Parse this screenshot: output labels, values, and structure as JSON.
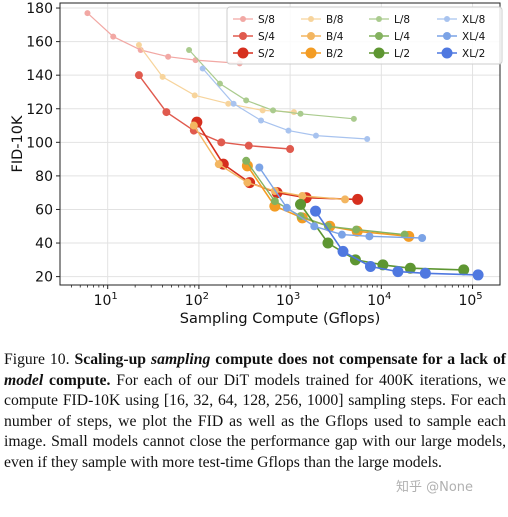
{
  "chart_data": {
    "type": "line",
    "xscale": "log",
    "xlim": [
      3,
      200000
    ],
    "ylim": [
      15,
      183
    ],
    "xlabel": "Sampling Compute (Gflops)",
    "ylabel": "FID-10K",
    "yticks": [
      "20",
      "40",
      "60",
      "80",
      "100",
      "120",
      "140",
      "160",
      "180"
    ],
    "xticks": [
      {
        "value": 10,
        "base": "10",
        "exp": "1"
      },
      {
        "value": 100,
        "base": "10",
        "exp": "2"
      },
      {
        "value": 1000,
        "base": "10",
        "exp": "3"
      },
      {
        "value": 10000,
        "base": "10",
        "exp": "4"
      },
      {
        "value": 100000,
        "base": "10",
        "exp": "5"
      }
    ],
    "grid": true,
    "legend_position": "top-right",
    "series": [
      {
        "name": "S/8",
        "color": "#f2a8a4",
        "size": "small",
        "x": [
          6,
          11.5,
          23,
          46,
          92,
          280
        ],
        "y": [
          177,
          163,
          155,
          151,
          149,
          147
        ]
      },
      {
        "name": "S/4",
        "color": "#e05a4e",
        "size": "medium",
        "x": [
          22,
          44,
          88,
          176,
          352,
          1000
        ],
        "y": [
          140,
          118,
          107,
          100,
          98,
          96
        ]
      },
      {
        "name": "S/2",
        "color": "#d62f1e",
        "size": "large",
        "x": [
          95,
          185,
          360,
          720,
          1500,
          5500
        ],
        "y": [
          112,
          87,
          76,
          70,
          67,
          66
        ]
      },
      {
        "name": "B/8",
        "color": "#f7d49c",
        "size": "small",
        "x": [
          22,
          40,
          90,
          210,
          500,
          1100
        ],
        "y": [
          158,
          139,
          128,
          123,
          119,
          118
        ]
      },
      {
        "name": "B/4",
        "color": "#f3b661",
        "size": "medium",
        "x": [
          88,
          165,
          340,
          680,
          1360,
          4000
        ],
        "y": [
          110,
          87,
          76,
          71,
          68,
          66
        ]
      },
      {
        "name": "B/2",
        "color": "#f39c24",
        "size": "large",
        "x": [
          340,
          680,
          1360,
          2720,
          5440,
          20000
        ],
        "y": [
          86,
          62,
          55,
          50,
          47,
          44
        ]
      },
      {
        "name": "L/8",
        "color": "#aacb8e",
        "size": "small",
        "x": [
          78,
          170,
          330,
          650,
          1300,
          5000
        ],
        "y": [
          155,
          135,
          125,
          119,
          117,
          114
        ]
      },
      {
        "name": "L/4",
        "color": "#84b25f",
        "size": "medium",
        "x": [
          330,
          680,
          1300,
          2600,
          5300,
          18000
        ],
        "y": [
          89,
          65,
          56,
          50,
          48,
          45
        ]
      },
      {
        "name": "L/2",
        "color": "#5e9632",
        "size": "large",
        "x": [
          1300,
          2600,
          5200,
          10400,
          20800,
          80000
        ],
        "y": [
          63,
          40,
          30,
          27,
          25,
          24
        ]
      },
      {
        "name": "XL/8",
        "color": "#a8c3ef",
        "size": "small",
        "x": [
          110,
          240,
          480,
          960,
          1920,
          7000
        ],
        "y": [
          144,
          123,
          113,
          107,
          104,
          102
        ]
      },
      {
        "name": "XL/4",
        "color": "#7ba3e6",
        "size": "medium",
        "x": [
          460,
          920,
          1840,
          3700,
          7400,
          28000
        ],
        "y": [
          85,
          61,
          50,
          45,
          44,
          43
        ]
      },
      {
        "name": "XL/2",
        "color": "#4f78e0",
        "size": "large",
        "x": [
          1900,
          3800,
          7600,
          15200,
          30400,
          115000
        ],
        "y": [
          59,
          35,
          26,
          23,
          22,
          21
        ]
      }
    ]
  },
  "caption": {
    "fig_label": "Figure 10.",
    "title_part1": "Scaling-up",
    "title_em1": "sampling",
    "title_part2": "compute does not compensate for a lack of",
    "title_em2": "model",
    "title_part3": "compute.",
    "body": "For each of our DiT models trained for 400K iterations, we compute FID-10K using [16, 32, 64, 128, 256, 1000] sampling steps. For each number of steps, we plot the FID as well as the Gflops used to sample each image. Small models cannot close the performance gap with our large models, even if they sample with more test-time Gflops than the large models."
  },
  "watermark": "知乎 @None"
}
